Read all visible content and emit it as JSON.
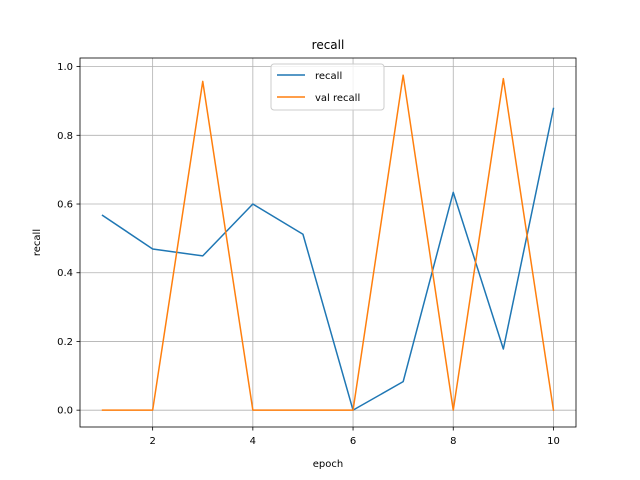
{
  "chart_data": {
    "type": "line",
    "title": "recall",
    "xlabel": "epoch",
    "ylabel": "recall",
    "xlim": [
      0.55,
      10.45
    ],
    "ylim": [
      -0.049,
      1.025
    ],
    "xticks": [
      2,
      4,
      6,
      8,
      10
    ],
    "yticks": [
      0.0,
      0.2,
      0.4,
      0.6,
      0.8,
      1.0
    ],
    "xtick_labels": [
      "2",
      "4",
      "6",
      "8",
      "10"
    ],
    "ytick_labels": [
      "0.0",
      "0.2",
      "0.4",
      "0.6",
      "0.8",
      "1.0"
    ],
    "grid": true,
    "legend_position": "upper-center",
    "x": [
      1,
      2,
      3,
      4,
      5,
      6,
      7,
      8,
      9,
      10
    ],
    "series": [
      {
        "name": "recall",
        "color": "#1f77b4",
        "values": [
          0.567,
          0.469,
          0.449,
          0.6,
          0.512,
          0.0,
          0.083,
          0.634,
          0.178,
          0.878
        ]
      },
      {
        "name": "val recall",
        "color": "#ff7f0e",
        "values": [
          0.0,
          0.0,
          0.957,
          0.0,
          0.0,
          0.0,
          0.975,
          0.0,
          0.965,
          0.0
        ]
      }
    ]
  }
}
